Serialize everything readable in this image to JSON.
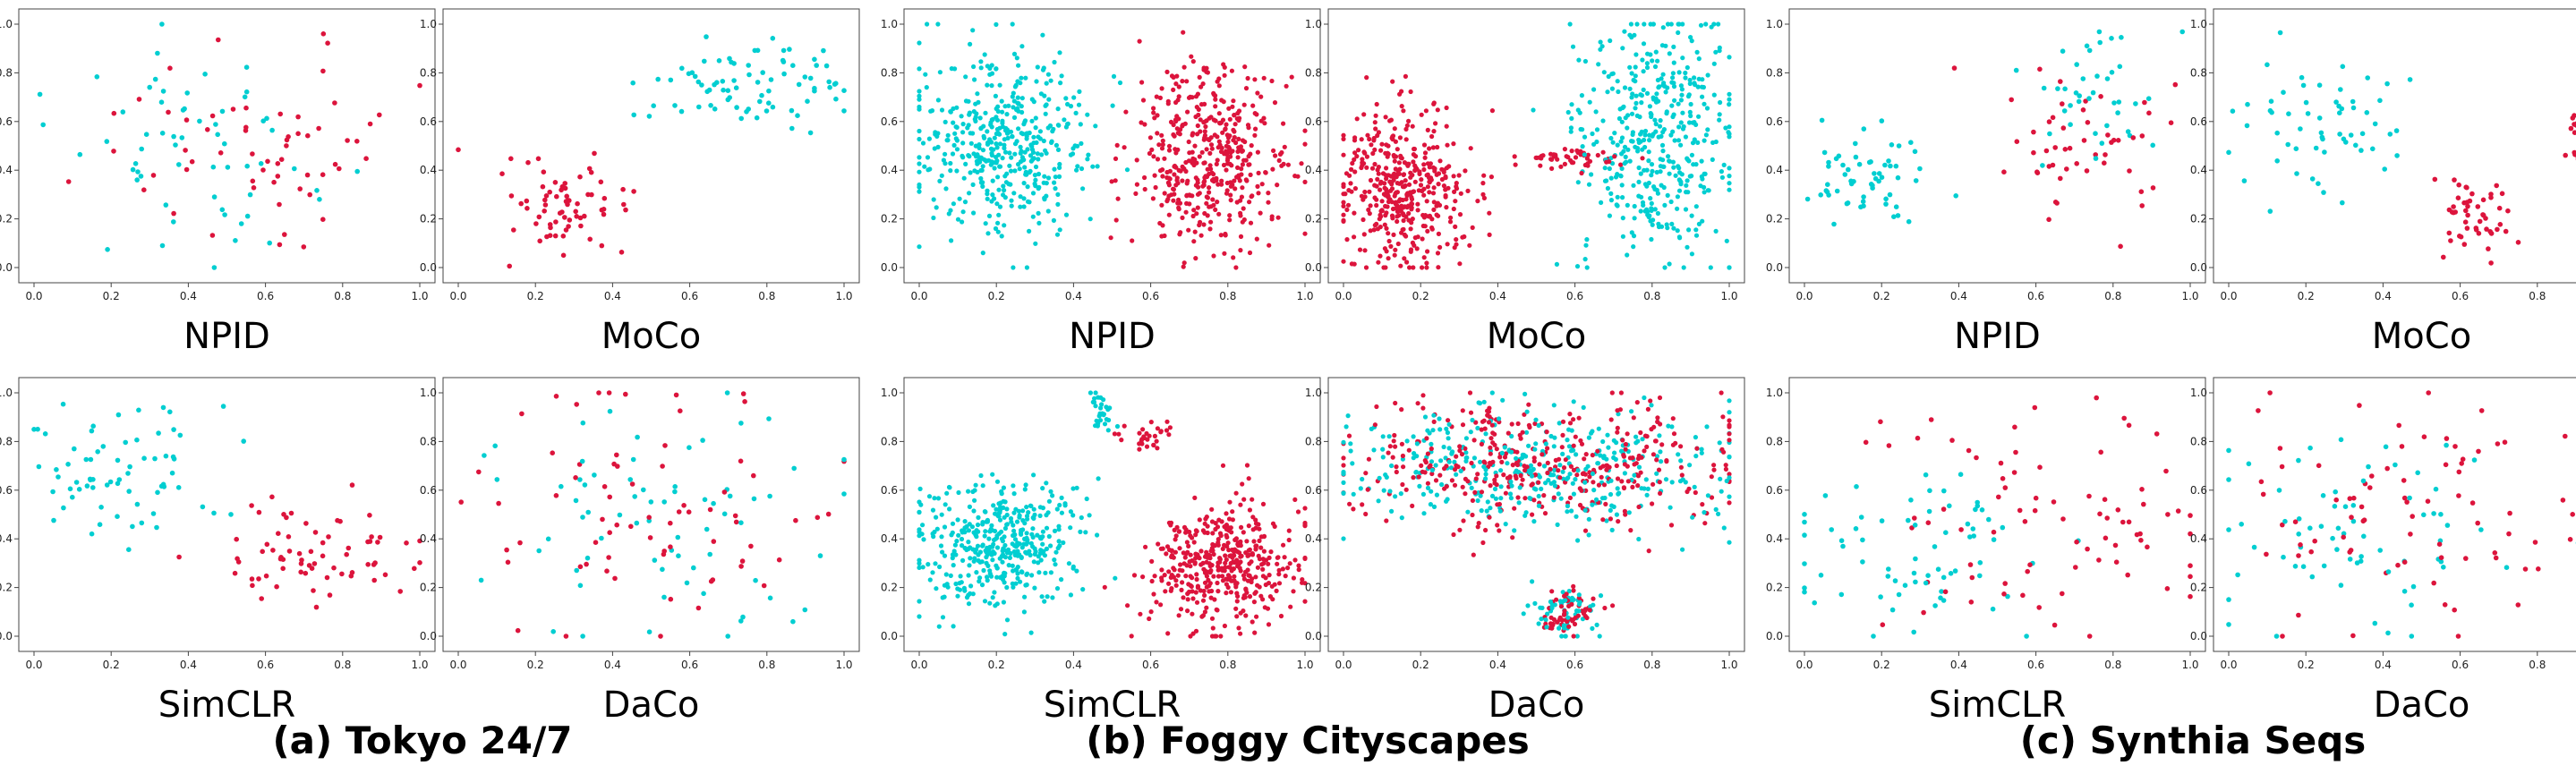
{
  "figure": {
    "groups": [
      {
        "caption": "(a) Tokyo 24/7"
      },
      {
        "caption": "(b) Foggy Cityscapes"
      },
      {
        "caption": "(c) Synthia Seqs"
      }
    ]
  },
  "chart_data": [
    {
      "type": "scatter",
      "group": "(a) Tokyo 24/7",
      "title": "NPID",
      "xlim": [
        0,
        1
      ],
      "ylim": [
        0,
        1
      ],
      "ticks": [
        "0.0",
        "0.2",
        "0.4",
        "0.6",
        "0.8",
        "1.0"
      ],
      "colors": [
        "#DC143C",
        "#00CED1"
      ],
      "point_count": 120,
      "clusters": [
        {
          "color_index": 1,
          "n": 60,
          "center": [
            0.42,
            0.45
          ],
          "spread": [
            0.16,
            0.22
          ]
        },
        {
          "color_index": 0,
          "n": 60,
          "center": [
            0.58,
            0.55
          ],
          "spread": [
            0.22,
            0.18
          ]
        }
      ]
    },
    {
      "type": "scatter",
      "group": "(a) Tokyo 24/7",
      "title": "MoCo",
      "xlim": [
        0,
        1
      ],
      "ylim": [
        0,
        1
      ],
      "ticks": [
        "0.0",
        "0.2",
        "0.4",
        "0.6",
        "0.8",
        "1.0"
      ],
      "colors": [
        "#DC143C",
        "#00CED1"
      ],
      "point_count": 150,
      "clusters": [
        {
          "color_index": 0,
          "n": 70,
          "center": [
            0.25,
            0.22
          ],
          "spread": [
            0.09,
            0.1
          ]
        },
        {
          "color_index": 1,
          "n": 80,
          "center": [
            0.75,
            0.75
          ],
          "spread": [
            0.12,
            0.1
          ]
        }
      ]
    },
    {
      "type": "scatter",
      "group": "(a) Tokyo 24/7",
      "title": "SimCLR",
      "xlim": [
        0,
        1
      ],
      "ylim": [
        0,
        1
      ],
      "ticks": [
        "0.0",
        "0.2",
        "0.4",
        "0.6",
        "0.8",
        "1.0"
      ],
      "colors": [
        "#DC143C",
        "#00CED1"
      ],
      "point_count": 140,
      "clusters": [
        {
          "color_index": 1,
          "n": 70,
          "center": [
            0.22,
            0.68
          ],
          "spread": [
            0.13,
            0.14
          ]
        },
        {
          "color_index": 0,
          "n": 70,
          "center": [
            0.72,
            0.32
          ],
          "spread": [
            0.14,
            0.12
          ]
        }
      ]
    },
    {
      "type": "scatter",
      "group": "(a) Tokyo 24/7",
      "title": "DaCo",
      "xlim": [
        0,
        1
      ],
      "ylim": [
        0,
        1
      ],
      "ticks": [
        "0.0",
        "0.2",
        "0.4",
        "0.6",
        "0.8",
        "1.0"
      ],
      "colors": [
        "#DC143C",
        "#00CED1"
      ],
      "point_count": 140,
      "clusters": [
        {
          "color_index": 0,
          "n": 70,
          "center": [
            0.5,
            0.5
          ],
          "spread": [
            0.25,
            0.25
          ]
        },
        {
          "color_index": 1,
          "n": 70,
          "center": [
            0.5,
            0.5
          ],
          "spread": [
            0.25,
            0.25
          ]
        }
      ]
    },
    {
      "type": "scatter",
      "group": "(b) Foggy Cityscapes",
      "title": "NPID",
      "xlim": [
        0,
        1
      ],
      "ylim": [
        0,
        1
      ],
      "ticks": [
        "0.0",
        "0.2",
        "0.4",
        "0.6",
        "0.8",
        "1.0"
      ],
      "colors": [
        "#DC143C",
        "#00CED1"
      ],
      "point_count": 900,
      "clusters": [
        {
          "color_index": 1,
          "n": 450,
          "center": [
            0.22,
            0.5
          ],
          "spread": [
            0.12,
            0.18
          ]
        },
        {
          "color_index": 0,
          "n": 450,
          "center": [
            0.75,
            0.45
          ],
          "spread": [
            0.1,
            0.18
          ]
        }
      ]
    },
    {
      "type": "scatter",
      "group": "(b) Foggy Cityscapes",
      "title": "MoCo",
      "xlim": [
        0,
        1
      ],
      "ylim": [
        0,
        1
      ],
      "ticks": [
        "0.0",
        "0.2",
        "0.4",
        "0.6",
        "0.8",
        "1.0"
      ],
      "colors": [
        "#DC143C",
        "#00CED1"
      ],
      "point_count": 900,
      "clusters": [
        {
          "color_index": 0,
          "n": 420,
          "center": [
            0.15,
            0.32
          ],
          "spread": [
            0.08,
            0.16
          ]
        },
        {
          "color_index": 0,
          "n": 50,
          "center": [
            0.6,
            0.45
          ],
          "spread": [
            0.08,
            0.02
          ]
        },
        {
          "color_index": 1,
          "n": 430,
          "center": [
            0.82,
            0.55
          ],
          "spread": [
            0.1,
            0.25
          ]
        }
      ]
    },
    {
      "type": "scatter",
      "group": "(b) Foggy Cityscapes",
      "title": "SimCLR",
      "xlim": [
        0,
        1
      ],
      "ylim": [
        0,
        1
      ],
      "ticks": [
        "0.0",
        "0.2",
        "0.4",
        "0.6",
        "0.8",
        "1.0"
      ],
      "colors": [
        "#DC143C",
        "#00CED1"
      ],
      "point_count": 900,
      "clusters": [
        {
          "color_index": 1,
          "n": 420,
          "center": [
            0.2,
            0.38
          ],
          "spread": [
            0.11,
            0.13
          ]
        },
        {
          "color_index": 1,
          "n": 30,
          "center": [
            0.47,
            0.9
          ],
          "spread": [
            0.02,
            0.05
          ]
        },
        {
          "color_index": 0,
          "n": 30,
          "center": [
            0.58,
            0.83
          ],
          "spread": [
            0.04,
            0.03
          ]
        },
        {
          "color_index": 0,
          "n": 420,
          "center": [
            0.78,
            0.3
          ],
          "spread": [
            0.1,
            0.13
          ]
        }
      ]
    },
    {
      "type": "scatter",
      "group": "(b) Foggy Cityscapes",
      "title": "DaCo",
      "xlim": [
        0,
        1
      ],
      "ylim": [
        0,
        1
      ],
      "ticks": [
        "0.0",
        "0.2",
        "0.4",
        "0.6",
        "0.8",
        "1.0"
      ],
      "colors": [
        "#DC143C",
        "#00CED1"
      ],
      "point_count": 900,
      "clusters": [
        {
          "color_index": 0,
          "n": 380,
          "center": [
            0.5,
            0.7
          ],
          "spread": [
            0.25,
            0.13
          ]
        },
        {
          "color_index": 1,
          "n": 380,
          "center": [
            0.5,
            0.7
          ],
          "spread": [
            0.25,
            0.13
          ]
        },
        {
          "color_index": 0,
          "n": 60,
          "center": [
            0.58,
            0.1
          ],
          "spread": [
            0.04,
            0.05
          ]
        },
        {
          "color_index": 1,
          "n": 60,
          "center": [
            0.58,
            0.1
          ],
          "spread": [
            0.04,
            0.05
          ]
        }
      ]
    },
    {
      "type": "scatter",
      "group": "(c) Synthia Seqs",
      "title": "NPID",
      "xlim": [
        0,
        1
      ],
      "ylim": [
        0,
        1
      ],
      "ticks": [
        "0.0",
        "0.2",
        "0.4",
        "0.6",
        "0.8",
        "1.0"
      ],
      "colors": [
        "#DC143C",
        "#00CED1"
      ],
      "point_count": 150,
      "clusters": [
        {
          "color_index": 1,
          "n": 60,
          "center": [
            0.18,
            0.35
          ],
          "spread": [
            0.1,
            0.1
          ]
        },
        {
          "color_index": 0,
          "n": 50,
          "center": [
            0.72,
            0.5
          ],
          "spread": [
            0.12,
            0.15
          ]
        },
        {
          "color_index": 1,
          "n": 40,
          "center": [
            0.75,
            0.7
          ],
          "spread": [
            0.08,
            0.13
          ]
        }
      ]
    },
    {
      "type": "scatter",
      "group": "(c) Synthia Seqs",
      "title": "MoCo",
      "xlim": [
        0,
        1
      ],
      "ylim": [
        0,
        1
      ],
      "ticks": [
        "0.0",
        "0.2",
        "0.4",
        "0.6",
        "0.8",
        "1.0"
      ],
      "colors": [
        "#DC143C",
        "#00CED1"
      ],
      "point_count": 150,
      "clusters": [
        {
          "color_index": 1,
          "n": 60,
          "center": [
            0.25,
            0.6
          ],
          "spread": [
            0.12,
            0.15
          ]
        },
        {
          "color_index": 0,
          "n": 50,
          "center": [
            0.65,
            0.2
          ],
          "spread": [
            0.06,
            0.08
          ]
        },
        {
          "color_index": 0,
          "n": 40,
          "center": [
            0.94,
            0.55
          ],
          "spread": [
            0.04,
            0.06
          ]
        }
      ]
    },
    {
      "type": "scatter",
      "group": "(c) Synthia Seqs",
      "title": "SimCLR",
      "xlim": [
        0,
        1
      ],
      "ylim": [
        0,
        1
      ],
      "ticks": [
        "0.0",
        "0.2",
        "0.4",
        "0.6",
        "0.8",
        "1.0"
      ],
      "colors": [
        "#DC143C",
        "#00CED1"
      ],
      "point_count": 150,
      "clusters": [
        {
          "color_index": 1,
          "n": 70,
          "center": [
            0.3,
            0.35
          ],
          "spread": [
            0.18,
            0.18
          ]
        },
        {
          "color_index": 0,
          "n": 80,
          "center": [
            0.65,
            0.5
          ],
          "spread": [
            0.22,
            0.22
          ]
        }
      ]
    },
    {
      "type": "scatter",
      "group": "(c) Synthia Seqs",
      "title": "DaCo",
      "xlim": [
        0,
        1
      ],
      "ylim": [
        0,
        1
      ],
      "ticks": [
        "0.0",
        "0.2",
        "0.4",
        "0.6",
        "0.8",
        "1.0"
      ],
      "colors": [
        "#DC143C",
        "#00CED1"
      ],
      "point_count": 150,
      "clusters": [
        {
          "color_index": 1,
          "n": 70,
          "center": [
            0.3,
            0.45
          ],
          "spread": [
            0.2,
            0.22
          ]
        },
        {
          "color_index": 0,
          "n": 80,
          "center": [
            0.5,
            0.55
          ],
          "spread": [
            0.25,
            0.25
          ]
        }
      ]
    }
  ]
}
